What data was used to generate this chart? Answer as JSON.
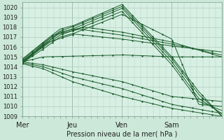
{
  "xlabel": "Pression niveau de la mer( hPa )",
  "background_color": "#cce8d8",
  "plot_bg_color": "#d8f0e4",
  "grid_color": "#b0ccc0",
  "line_color": "#1a5c2a",
  "ylim": [
    1009,
    1020.5
  ],
  "xlim": [
    0,
    192
  ],
  "xtick_labels": [
    "Mer",
    "Jeu",
    "Ven",
    "Sam"
  ],
  "xtick_positions": [
    0,
    48,
    96,
    144
  ],
  "ytick_start": 1009,
  "ytick_end": 1020,
  "total_hours": 192,
  "lines": [
    {
      "waypoints": [
        [
          0,
          1014.8
        ],
        [
          30,
          1017.5
        ],
        [
          48,
          1018.1
        ],
        [
          96,
          1020.2
        ],
        [
          144,
          1015.0
        ],
        [
          192,
          1009.0
        ]
      ]
    },
    {
      "waypoints": [
        [
          0,
          1014.7
        ],
        [
          30,
          1017.3
        ],
        [
          48,
          1018.0
        ],
        [
          96,
          1020.1
        ],
        [
          144,
          1014.8
        ],
        [
          192,
          1009.1
        ]
      ]
    },
    {
      "waypoints": [
        [
          0,
          1014.6
        ],
        [
          30,
          1017.0
        ],
        [
          48,
          1017.8
        ],
        [
          96,
          1019.8
        ],
        [
          144,
          1014.5
        ],
        [
          192,
          1009.3
        ]
      ]
    },
    {
      "waypoints": [
        [
          0,
          1014.5
        ],
        [
          30,
          1016.8
        ],
        [
          48,
          1017.5
        ],
        [
          96,
          1019.5
        ],
        [
          144,
          1014.2
        ],
        [
          192,
          1009.6
        ]
      ]
    },
    {
      "waypoints": [
        [
          0,
          1014.4
        ],
        [
          48,
          1017.2
        ],
        [
          96,
          1019.2
        ],
        [
          144,
          1016.8
        ],
        [
          192,
          1010.0
        ]
      ]
    },
    {
      "waypoints": [
        [
          0,
          1014.5
        ],
        [
          48,
          1018.0
        ],
        [
          96,
          1017.5
        ],
        [
          144,
          1016.5
        ],
        [
          192,
          1015.0
        ]
      ]
    },
    {
      "waypoints": [
        [
          0,
          1014.5
        ],
        [
          48,
          1017.8
        ],
        [
          96,
          1017.2
        ],
        [
          144,
          1016.3
        ],
        [
          192,
          1015.2
        ]
      ]
    },
    {
      "waypoints": [
        [
          0,
          1014.4
        ],
        [
          24,
          1015.2
        ],
        [
          96,
          1016.5
        ],
        [
          144,
          1016.0
        ],
        [
          192,
          1015.5
        ]
      ]
    },
    {
      "waypoints": [
        [
          0,
          1014.3
        ],
        [
          192,
          1015.0
        ]
      ]
    },
    {
      "waypoints": [
        [
          0,
          1014.5
        ],
        [
          48,
          1014.0
        ],
        [
          96,
          1013.5
        ],
        [
          144,
          1012.0
        ],
        [
          192,
          1010.5
        ]
      ]
    },
    {
      "waypoints": [
        [
          0,
          1014.4
        ],
        [
          48,
          1013.5
        ],
        [
          96,
          1012.5
        ],
        [
          144,
          1011.0
        ],
        [
          192,
          1009.5
        ]
      ]
    },
    {
      "waypoints": [
        [
          0,
          1014.3
        ],
        [
          48,
          1013.0
        ],
        [
          96,
          1011.8
        ],
        [
          144,
          1010.5
        ],
        [
          192,
          1009.2
        ]
      ]
    }
  ]
}
